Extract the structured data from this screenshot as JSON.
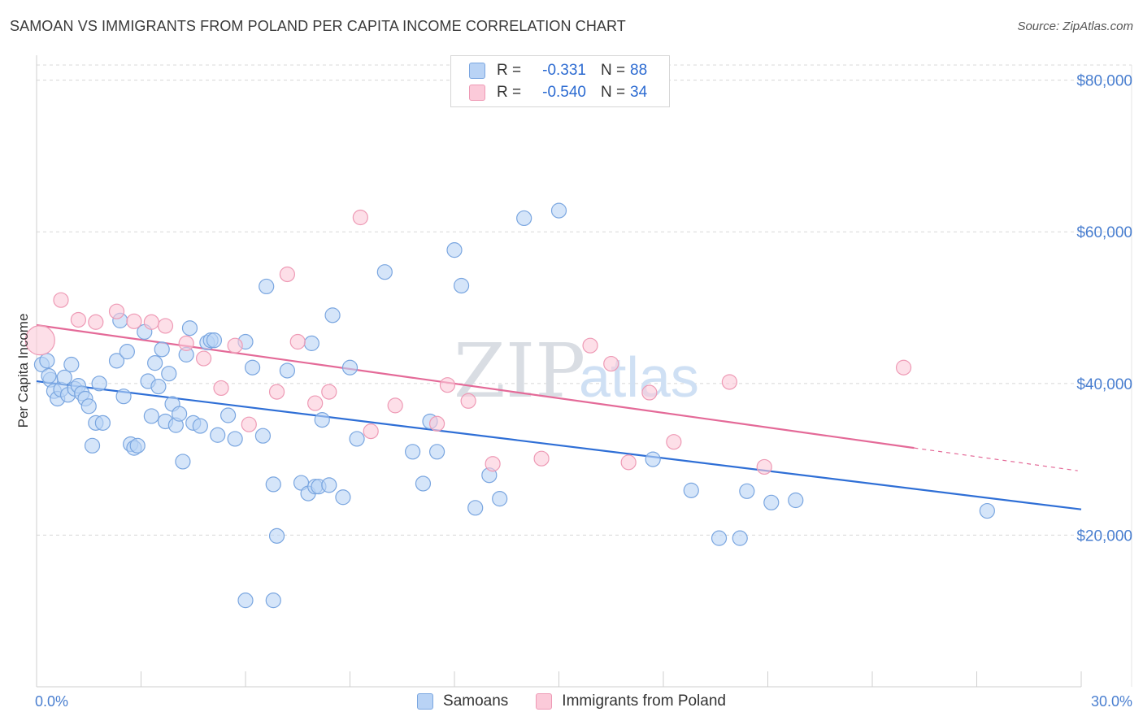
{
  "title": "SAMOAN VS IMMIGRANTS FROM POLAND PER CAPITA INCOME CORRELATION CHART",
  "source": "Source: ZipAtlas.com",
  "watermark": {
    "zip": "ZIP",
    "atlas": "atlas"
  },
  "legend": {
    "rows": [
      {
        "r_label": "R =",
        "r_value": "-0.331",
        "n_label": "N =",
        "n_value": "88",
        "fill": "#b9d3f5",
        "stroke": "#7aa6e0"
      },
      {
        "r_label": "R =",
        "r_value": "-0.540",
        "n_label": "N =",
        "n_value": "34",
        "fill": "#fbcad9",
        "stroke": "#ee9ab5"
      }
    ]
  },
  "bottom_legend": [
    {
      "label": "Samoans",
      "fill": "#b9d3f5",
      "stroke": "#7aa6e0"
    },
    {
      "label": "Immigrants from Poland",
      "fill": "#fbcad9",
      "stroke": "#ee9ab5"
    }
  ],
  "chart_data": {
    "type": "scatter",
    "title": "SAMOAN VS IMMIGRANTS FROM POLAND PER CAPITA INCOME CORRELATION CHART",
    "xlabel": "",
    "ylabel": "Per Capita Income",
    "xlim": [
      0,
      30
    ],
    "ylim": [
      0,
      82000
    ],
    "x_tick_labels": [
      {
        "value": 0,
        "label": "0.0%"
      },
      {
        "value": 30,
        "label": "30.0%"
      }
    ],
    "y_tick_labels": [
      {
        "value": 20000,
        "label": "$20,000"
      },
      {
        "value": 40000,
        "label": "$40,000"
      },
      {
        "value": 60000,
        "label": "$60,000"
      },
      {
        "value": 80000,
        "label": "$80,000"
      }
    ],
    "series": [
      {
        "name": "Samoans",
        "color_fill": "#b9d3f5",
        "color_stroke": "#7aa6e0",
        "trend_color": "#2f6fd6",
        "trend": {
          "x0": 0,
          "y0": 40300,
          "x1": 30,
          "y1": 23400
        },
        "points": [
          [
            0.15,
            42500
          ],
          [
            0.3,
            43000
          ],
          [
            0.4,
            40500
          ],
          [
            0.5,
            39000
          ],
          [
            0.6,
            38000
          ],
          [
            0.7,
            39200
          ],
          [
            0.8,
            40800
          ],
          [
            0.9,
            38500
          ],
          [
            1.0,
            42500
          ],
          [
            1.1,
            39300
          ],
          [
            1.2,
            39700
          ],
          [
            1.3,
            38700
          ],
          [
            1.4,
            38000
          ],
          [
            1.5,
            37000
          ],
          [
            1.6,
            31800
          ],
          [
            1.7,
            34800
          ],
          [
            1.8,
            40000
          ],
          [
            1.9,
            34800
          ],
          [
            2.3,
            43000
          ],
          [
            2.4,
            48300
          ],
          [
            2.5,
            38300
          ],
          [
            2.6,
            44200
          ],
          [
            2.7,
            32000
          ],
          [
            2.8,
            31500
          ],
          [
            2.9,
            31800
          ],
          [
            3.1,
            46800
          ],
          [
            3.2,
            40300
          ],
          [
            3.3,
            35700
          ],
          [
            3.4,
            42700
          ],
          [
            3.5,
            39600
          ],
          [
            3.6,
            44500
          ],
          [
            3.7,
            35000
          ],
          [
            3.8,
            41300
          ],
          [
            3.9,
            37300
          ],
          [
            4.0,
            34500
          ],
          [
            4.1,
            36000
          ],
          [
            4.2,
            29700
          ],
          [
            4.3,
            43800
          ],
          [
            4.4,
            47300
          ],
          [
            4.5,
            34800
          ],
          [
            4.7,
            34400
          ],
          [
            4.9,
            45400
          ],
          [
            5.0,
            45700
          ],
          [
            5.1,
            45700
          ],
          [
            5.2,
            33200
          ],
          [
            5.5,
            35800
          ],
          [
            5.7,
            32700
          ],
          [
            6.0,
            45500
          ],
          [
            6.2,
            42100
          ],
          [
            6.5,
            33100
          ],
          [
            6.6,
            52800
          ],
          [
            6.8,
            26700
          ],
          [
            6.9,
            19900
          ],
          [
            7.2,
            41700
          ],
          [
            7.6,
            26900
          ],
          [
            7.8,
            25500
          ],
          [
            7.9,
            45300
          ],
          [
            8.0,
            26400
          ],
          [
            8.1,
            26400
          ],
          [
            8.2,
            35200
          ],
          [
            8.4,
            26600
          ],
          [
            8.5,
            49000
          ],
          [
            8.8,
            25000
          ],
          [
            9.0,
            42100
          ],
          [
            9.2,
            32700
          ],
          [
            10.0,
            54700
          ],
          [
            10.8,
            31000
          ],
          [
            11.1,
            26800
          ],
          [
            11.3,
            35000
          ],
          [
            11.5,
            31000
          ],
          [
            12.0,
            57600
          ],
          [
            12.2,
            52900
          ],
          [
            12.6,
            23600
          ],
          [
            13.0,
            27900
          ],
          [
            13.3,
            24800
          ],
          [
            14.0,
            61800
          ],
          [
            15.0,
            62800
          ],
          [
            17.7,
            30000
          ],
          [
            18.8,
            25900
          ],
          [
            19.6,
            19600
          ],
          [
            20.2,
            19600
          ],
          [
            20.4,
            25800
          ],
          [
            21.1,
            24300
          ],
          [
            21.8,
            24600
          ],
          [
            27.3,
            23200
          ],
          [
            6.8,
            11400
          ],
          [
            6.0,
            11400
          ],
          [
            0.35,
            41000
          ]
        ]
      },
      {
        "name": "Immigrants from Poland",
        "color_fill": "#fbcad9",
        "color_stroke": "#ee9ab5",
        "trend_color": "#e46a98",
        "trend": {
          "x0": 0,
          "y0": 47700,
          "x1": 25.2,
          "y1": 31500
        },
        "trend_dashed": {
          "x0": 25.2,
          "y0": 31500,
          "x1": 29.9,
          "y1": 28500
        },
        "points": [
          [
            0.1,
            45700
          ],
          [
            0.7,
            51000
          ],
          [
            1.2,
            48400
          ],
          [
            1.7,
            48100
          ],
          [
            2.3,
            49500
          ],
          [
            2.8,
            48200
          ],
          [
            3.3,
            48100
          ],
          [
            3.7,
            47600
          ],
          [
            4.3,
            45300
          ],
          [
            4.8,
            43300
          ],
          [
            5.3,
            39400
          ],
          [
            5.7,
            45000
          ],
          [
            6.1,
            34600
          ],
          [
            6.9,
            38900
          ],
          [
            7.2,
            54400
          ],
          [
            7.5,
            45500
          ],
          [
            8.0,
            37400
          ],
          [
            8.4,
            38900
          ],
          [
            9.3,
            61900
          ],
          [
            9.6,
            33700
          ],
          [
            10.3,
            37100
          ],
          [
            11.5,
            34700
          ],
          [
            11.8,
            39800
          ],
          [
            12.4,
            37700
          ],
          [
            13.1,
            29400
          ],
          [
            14.5,
            30100
          ],
          [
            15.9,
            45000
          ],
          [
            16.5,
            42600
          ],
          [
            17.0,
            29600
          ],
          [
            17.6,
            38800
          ],
          [
            18.3,
            32300
          ],
          [
            19.9,
            40200
          ],
          [
            20.9,
            29000
          ],
          [
            24.9,
            42100
          ]
        ]
      }
    ]
  }
}
